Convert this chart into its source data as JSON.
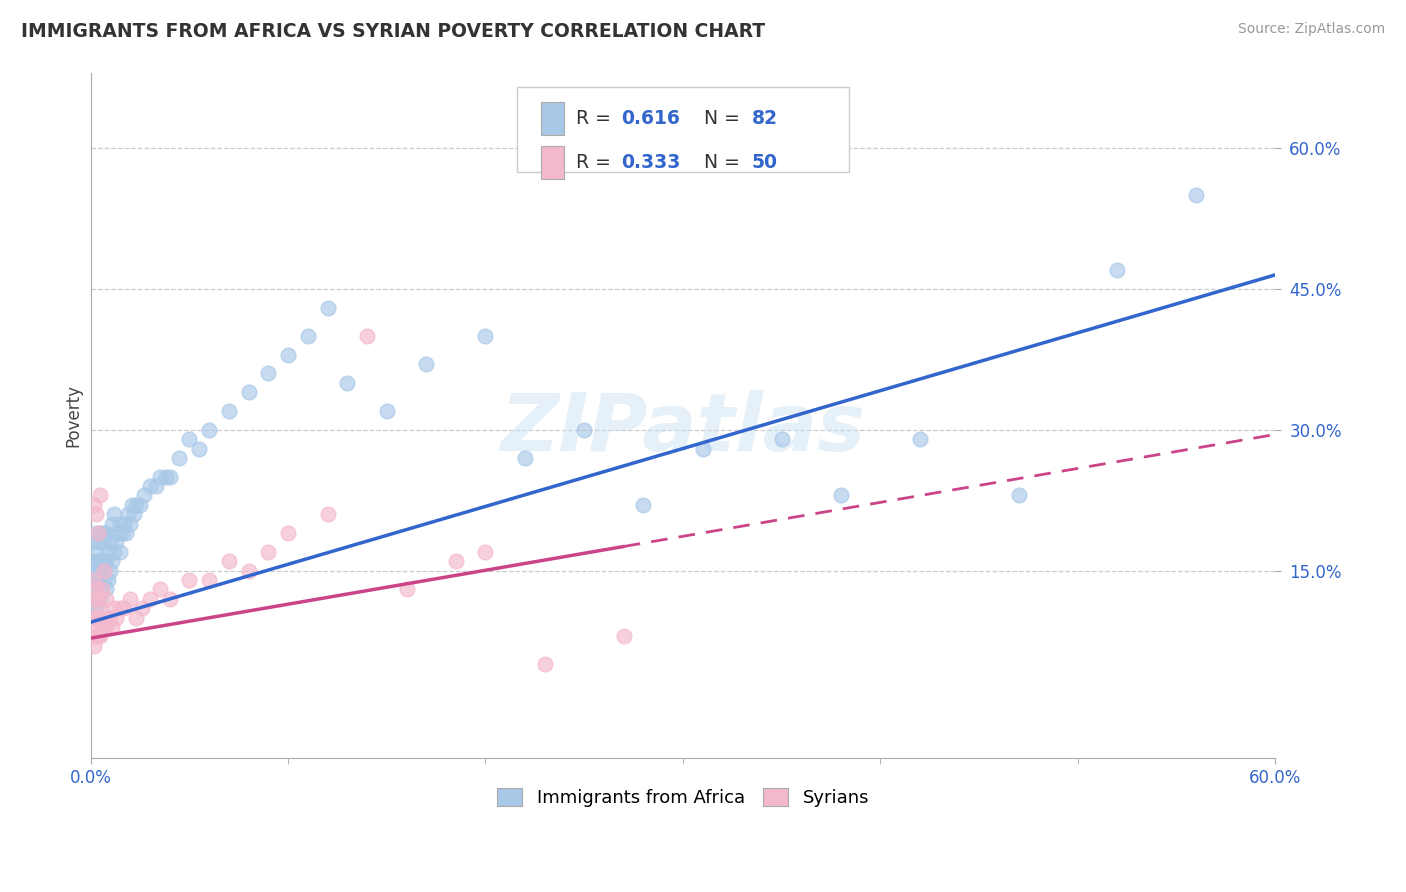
{
  "title": "IMMIGRANTS FROM AFRICA VS SYRIAN POVERTY CORRELATION CHART",
  "source_text": "Source: ZipAtlas.com",
  "ylabel": "Poverty",
  "xlim": [
    0.0,
    0.6
  ],
  "ylim": [
    -0.05,
    0.68
  ],
  "yticks": [
    0.15,
    0.3,
    0.45,
    0.6
  ],
  "ytick_labels": [
    "15.0%",
    "30.0%",
    "45.0%",
    "60.0%"
  ],
  "xtick_labels": [
    "0.0%",
    "60.0%"
  ],
  "color_africa": "#a8c8e8",
  "color_syria": "#f4b8cc",
  "color_africa_line": "#3366cc",
  "color_syria_line": "#cc4488",
  "watermark": "ZIPatlas",
  "africa_line_x0": 0.0,
  "africa_line_y0": 0.095,
  "africa_line_x1": 0.6,
  "africa_line_y1": 0.465,
  "syria_line_x0": 0.0,
  "syria_line_y0": 0.078,
  "syria_line_x1": 0.6,
  "syria_line_y1": 0.295,
  "africa_x": [
    0.001,
    0.001,
    0.001,
    0.001,
    0.002,
    0.002,
    0.002,
    0.002,
    0.002,
    0.003,
    0.003,
    0.003,
    0.003,
    0.003,
    0.004,
    0.004,
    0.004,
    0.004,
    0.005,
    0.005,
    0.005,
    0.005,
    0.006,
    0.006,
    0.006,
    0.007,
    0.007,
    0.007,
    0.008,
    0.008,
    0.008,
    0.009,
    0.009,
    0.01,
    0.01,
    0.011,
    0.011,
    0.012,
    0.012,
    0.013,
    0.014,
    0.015,
    0.015,
    0.016,
    0.017,
    0.018,
    0.019,
    0.02,
    0.021,
    0.022,
    0.023,
    0.025,
    0.027,
    0.03,
    0.033,
    0.035,
    0.038,
    0.04,
    0.045,
    0.05,
    0.055,
    0.06,
    0.07,
    0.08,
    0.09,
    0.1,
    0.11,
    0.12,
    0.13,
    0.15,
    0.17,
    0.2,
    0.22,
    0.25,
    0.28,
    0.31,
    0.35,
    0.38,
    0.42,
    0.47,
    0.52,
    0.56
  ],
  "africa_y": [
    0.11,
    0.13,
    0.14,
    0.15,
    0.1,
    0.12,
    0.14,
    0.16,
    0.18,
    0.11,
    0.13,
    0.15,
    0.17,
    0.19,
    0.12,
    0.14,
    0.16,
    0.18,
    0.12,
    0.14,
    0.16,
    0.19,
    0.13,
    0.15,
    0.18,
    0.14,
    0.16,
    0.19,
    0.13,
    0.16,
    0.19,
    0.14,
    0.17,
    0.15,
    0.18,
    0.16,
    0.2,
    0.17,
    0.21,
    0.18,
    0.19,
    0.17,
    0.2,
    0.19,
    0.2,
    0.19,
    0.21,
    0.2,
    0.22,
    0.21,
    0.22,
    0.22,
    0.23,
    0.24,
    0.24,
    0.25,
    0.25,
    0.25,
    0.27,
    0.29,
    0.28,
    0.3,
    0.32,
    0.34,
    0.36,
    0.38,
    0.4,
    0.43,
    0.35,
    0.32,
    0.37,
    0.4,
    0.27,
    0.3,
    0.22,
    0.28,
    0.29,
    0.23,
    0.29,
    0.23,
    0.47,
    0.55
  ],
  "syria_x": [
    0.001,
    0.001,
    0.001,
    0.002,
    0.002,
    0.002,
    0.002,
    0.003,
    0.003,
    0.003,
    0.003,
    0.004,
    0.004,
    0.004,
    0.004,
    0.005,
    0.005,
    0.005,
    0.006,
    0.006,
    0.007,
    0.007,
    0.008,
    0.008,
    0.009,
    0.01,
    0.011,
    0.012,
    0.013,
    0.015,
    0.017,
    0.02,
    0.023,
    0.026,
    0.03,
    0.035,
    0.04,
    0.05,
    0.06,
    0.07,
    0.08,
    0.09,
    0.1,
    0.12,
    0.14,
    0.16,
    0.185,
    0.2,
    0.23,
    0.27
  ],
  "syria_y": [
    0.08,
    0.1,
    0.14,
    0.07,
    0.09,
    0.12,
    0.22,
    0.08,
    0.1,
    0.13,
    0.21,
    0.08,
    0.1,
    0.12,
    0.19,
    0.08,
    0.11,
    0.23,
    0.09,
    0.13,
    0.09,
    0.15,
    0.09,
    0.12,
    0.1,
    0.1,
    0.09,
    0.11,
    0.1,
    0.11,
    0.11,
    0.12,
    0.1,
    0.11,
    0.12,
    0.13,
    0.12,
    0.14,
    0.14,
    0.16,
    0.15,
    0.17,
    0.19,
    0.21,
    0.4,
    0.13,
    0.16,
    0.17,
    0.05,
    0.08
  ]
}
